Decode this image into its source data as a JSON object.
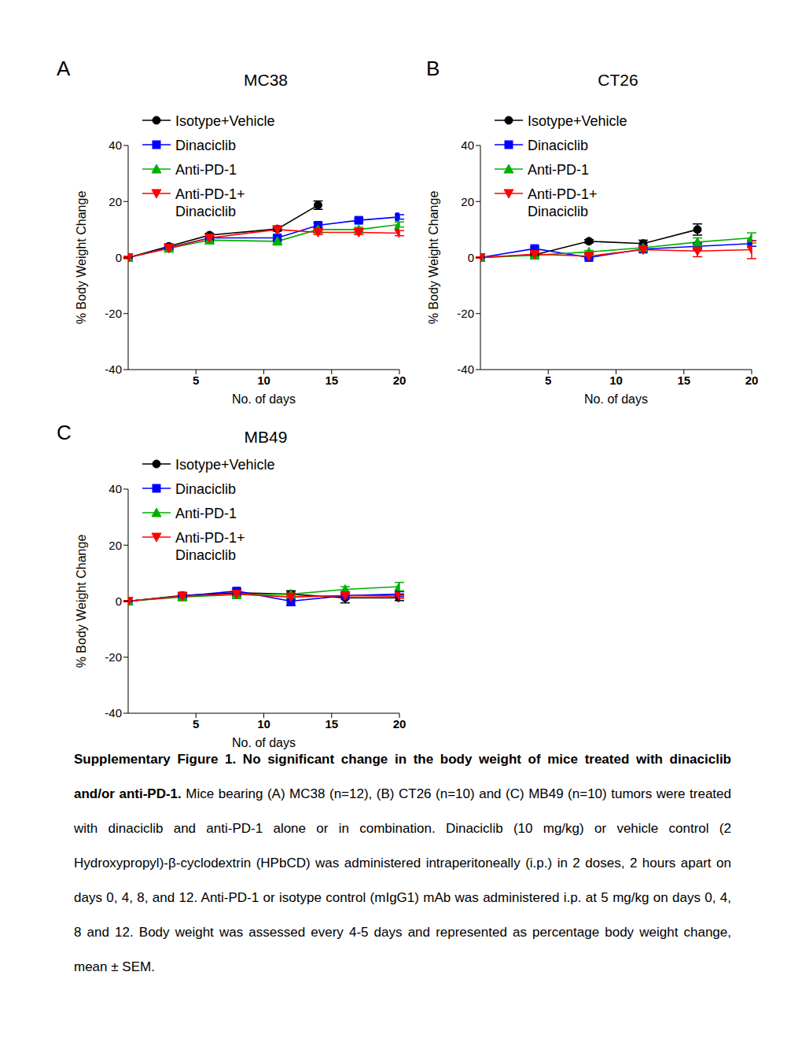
{
  "chart_data": [
    {
      "type": "line",
      "annotations": [
        "A"
      ],
      "title": "MC38",
      "x_label": "No. of days",
      "y_label": "% Body Weight Change",
      "legend": "upper left",
      "x": [
        0,
        3,
        6,
        11,
        14,
        17,
        20
      ],
      "xlim": [
        0,
        20
      ],
      "xticks": [
        5,
        10,
        15,
        20
      ],
      "ylim": [
        -40,
        40
      ],
      "yticks": [
        -40,
        -20,
        0,
        20,
        40
      ],
      "series": [
        {
          "name": "Isotype+Vehicle",
          "color": "#000000",
          "marker": "circle",
          "values": [
            0,
            4,
            8,
            10.2,
            18.7,
            null,
            null
          ],
          "errors": [
            0.3,
            0.8,
            0.6,
            0.5,
            1.5,
            null,
            null
          ]
        },
        {
          "name": "Dinaciclib",
          "color": "#0000ff",
          "marker": "square",
          "values": [
            0,
            3.5,
            7,
            7,
            11.5,
            13.3,
            14.5
          ],
          "errors": [
            0.3,
            0.5,
            0.6,
            0.8,
            0.8,
            0.7,
            0.8
          ]
        },
        {
          "name": "Anti-PD-1",
          "color": "#00b000",
          "marker": "triangle-up",
          "values": [
            0,
            3.3,
            6.2,
            5.8,
            10,
            10,
            11.8
          ],
          "errors": [
            0.3,
            0.5,
            0.6,
            0.7,
            0.7,
            0.8,
            0.9
          ]
        },
        {
          "name": "Anti-PD-1+ Dinaciclib",
          "color": "#ff0000",
          "marker": "triangle-down",
          "values": [
            0,
            3.3,
            7,
            10,
            9,
            9,
            8.7
          ],
          "errors": [
            0.3,
            0.5,
            0.6,
            0.6,
            0.8,
            0.8,
            0.9
          ]
        }
      ]
    },
    {
      "type": "line",
      "annotations": [
        "B"
      ],
      "title": "CT26",
      "x_label": "No. of days",
      "y_label": "% Body Weight Change",
      "legend": "upper left",
      "x": [
        0,
        4,
        8,
        12,
        16,
        20
      ],
      "xlim": [
        0,
        20
      ],
      "xticks": [
        5,
        10,
        15,
        20
      ],
      "ylim": [
        -40,
        40
      ],
      "yticks": [
        -40,
        -20,
        0,
        20,
        40
      ],
      "series": [
        {
          "name": "Isotype+Vehicle",
          "color": "#000000",
          "marker": "circle",
          "values": [
            0,
            1.0,
            5.8,
            5.0,
            10.0,
            null
          ],
          "errors": [
            0.2,
            0.5,
            0.6,
            1.2,
            2.0,
            null
          ]
        },
        {
          "name": "Dinaciclib",
          "color": "#0000ff",
          "marker": "square",
          "values": [
            0,
            3.2,
            0,
            3,
            4,
            5
          ],
          "errors": [
            0.2,
            0.6,
            0.5,
            0.7,
            0.9,
            1.0
          ]
        },
        {
          "name": "Anti-PD-1",
          "color": "#00b000",
          "marker": "triangle-up",
          "values": [
            0,
            0.8,
            2,
            3.5,
            5.5,
            7
          ],
          "errors": [
            0.2,
            0.5,
            0.5,
            0.8,
            1.5,
            1.8
          ]
        },
        {
          "name": "Anti-PD-1+ Dinaciclib",
          "color": "#ff0000",
          "marker": "triangle-down",
          "values": [
            0,
            1.2,
            0.5,
            2.8,
            2.3,
            2.8
          ],
          "errors": [
            0.2,
            0.5,
            0.5,
            0.9,
            2.0,
            3.2
          ]
        }
      ]
    },
    {
      "type": "line",
      "annotations": [
        "C"
      ],
      "title": "MB49",
      "x_label": "No. of days",
      "y_label": "% Body Weight Change",
      "legend": "upper left",
      "x": [
        0,
        4,
        8,
        12,
        16,
        20
      ],
      "xlim": [
        0,
        20
      ],
      "xticks": [
        5,
        10,
        15,
        20
      ],
      "ylim": [
        -40,
        40
      ],
      "yticks": [
        -40,
        -20,
        0,
        20,
        40
      ],
      "series": [
        {
          "name": "Isotype+Vehicle",
          "color": "#000000",
          "marker": "circle",
          "values": [
            0,
            2,
            3,
            2.5,
            1.2,
            1.2
          ],
          "errors": [
            0.2,
            0.5,
            0.6,
            1.2,
            1.8,
            1.0
          ]
        },
        {
          "name": "Dinaciclib",
          "color": "#0000ff",
          "marker": "square",
          "values": [
            0,
            1.8,
            3.6,
            0,
            2,
            2.5
          ],
          "errors": [
            0.2,
            0.5,
            0.8,
            1.6,
            0.8,
            0.9
          ]
        },
        {
          "name": "Anti-PD-1",
          "color": "#00b000",
          "marker": "triangle-up",
          "values": [
            0,
            1.5,
            2.3,
            2.5,
            4.2,
            5.2
          ],
          "errors": [
            0.2,
            0.5,
            0.6,
            0.8,
            1.0,
            1.5
          ]
        },
        {
          "name": "Anti-PD-1+ Dinaciclib",
          "color": "#ff0000",
          "marker": "triangle-down",
          "values": [
            0,
            1.8,
            2.5,
            1.5,
            2,
            1.8
          ],
          "errors": [
            0.2,
            0.4,
            0.6,
            0.9,
            0.8,
            0.8
          ]
        }
      ]
    }
  ],
  "caption": {
    "title": "Supplementary Figure 1. No significant change in the body weight of mice treated with dinaciclib and/or anti-PD-1.",
    "text": "Mice bearing (A) MC38 (n=12), (B) CT26 (n=10) and (C) MB49 (n=10) tumors were treated with dinaciclib and anti-PD-1 alone or in combination. Dinaciclib (10 mg/kg) or vehicle control (2 Hydroxypropyl)-β-cyclodextrin (HPbCD) was administered intraperitoneally (i.p.) in 2 doses, 2 hours apart on days 0, 4, 8, and 12.  Anti-PD-1 or isotype control (mIgG1) mAb was administered i.p. at 5 mg/kg on days 0, 4, 8 and 12.  Body weight was assessed every 4-5 days and represented as percentage body weight change, mean ± SEM."
  }
}
